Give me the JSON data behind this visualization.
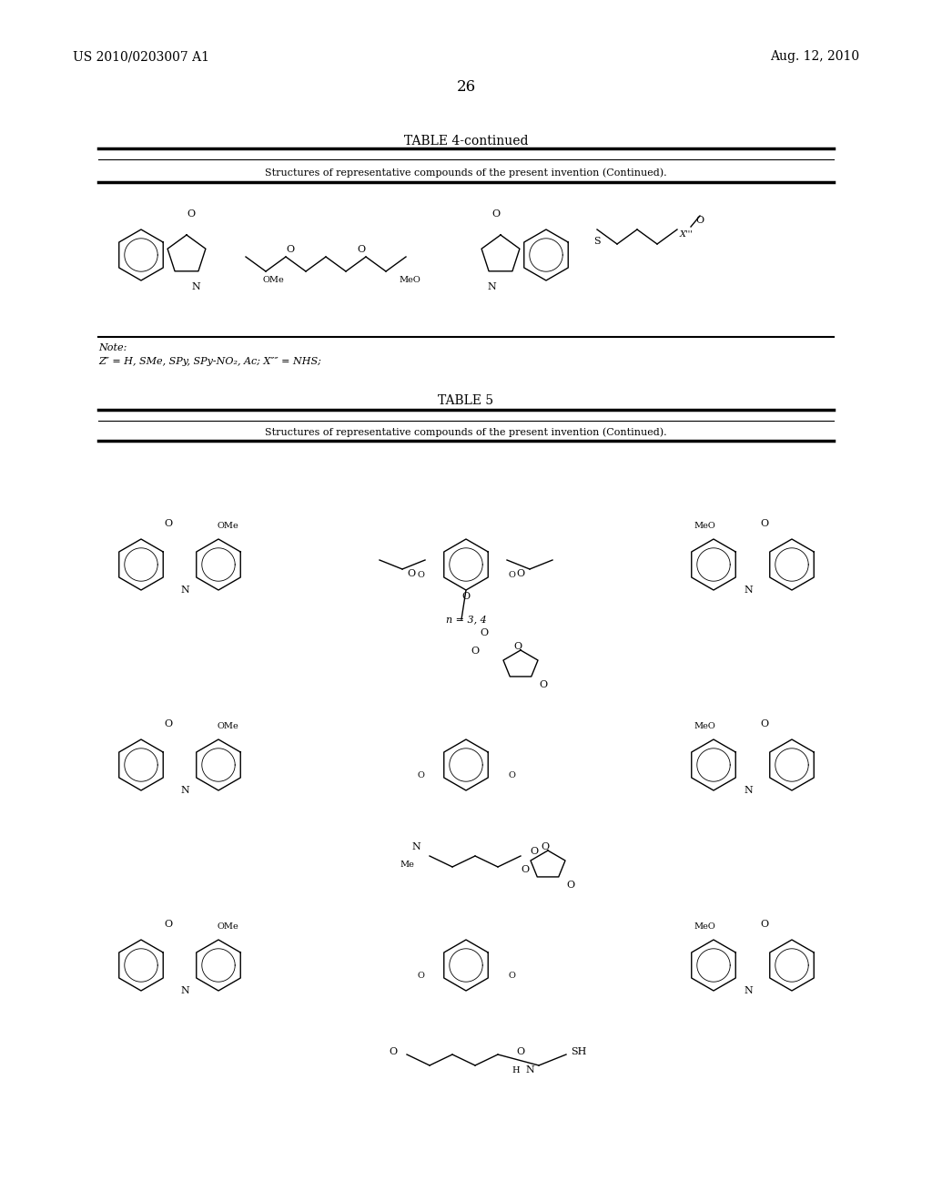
{
  "background_color": "#ffffff",
  "page_number": "26",
  "header_left": "US 2010/0203007 A1",
  "header_right": "Aug. 12, 2010",
  "table4_title": "TABLE 4-continued",
  "table4_subtitle": "Structures of representative compounds of the present invention (Continued).",
  "table4_note_label": "Note:",
  "table4_note_text": "Z″ = H, SMe, SPy, SPy-NO₂, Ac; X″″ = NHS;",
  "table5_title": "TABLE 5",
  "table5_subtitle": "Structures of representative compounds of the present invention (Continued).",
  "table5_note1": "n = 3, 4",
  "font_family": "serif"
}
